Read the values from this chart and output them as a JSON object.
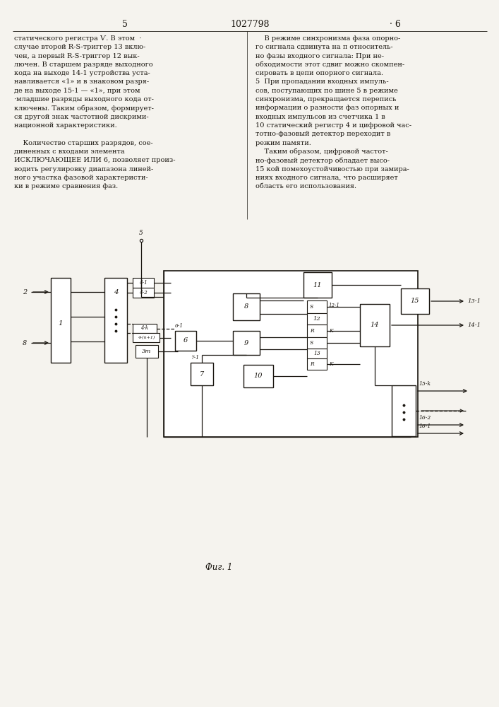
{
  "title": "1027798",
  "page_left": "5",
  "page_right": "6",
  "fig_caption": "Фиг. 1",
  "bg_color": "#f5f3ee",
  "text_color": "#1a1610",
  "lc_text": [
    "статического регистра Ѵ. В этом  ·",
    "случае второй R-S-триггер 13 вклю-",
    "чен, а первый R-S-триггер 12 вык-",
    "лючен. В старшем разряде выходного",
    "кода на выходе 14-1 устройства уста-",
    "навливается «1» и в знаковом разря-",
    "де на выходе 15-1 — «1», при этом",
    "·младшие разряды выходного кода от-",
    "ключены. Таким образом, формирует-",
    "ся другой знак частотной дискрими-",
    "национной характеристики.",
    "",
    "    Количество старших разрядов, сое-",
    "диненных с входами элемента",
    "ИСКЛЮЧАЮЩЕЕ ИЛИ 6, позволяет произ-",
    "водить регулировку диапазона линей-",
    "ного участка фазовой характеристи-",
    "ки в режиме сравнения фаз."
  ],
  "rc_text": [
    "    В режиме синхронизма фаза опорно-",
    "го сигнала сдвинута на π относитель-",
    "но фазы входного сигнала: При не-",
    "обходимости этот сдвиг можно скомпен-",
    "сировать в цепи опорного сигнала.",
    "5  При пропадании входных импуль-",
    "сов, поступающих по шине 5 в режиме",
    "синхронизма, прекращается перепись",
    "информации о разности фаз опорных и",
    "входных импульсов из счетчика 1 в",
    "10 статический регистр 4 и цифровой час-",
    "тотно-фазовый детектор переходит в",
    "режим памяти.",
    "    Таким образом, цифровой частот-",
    "но-фазовый детектор обладает высо-",
    "15 кой помехоустойчивостью при замира-",
    "ниях входного сигнала, что расширяет",
    "область его использования."
  ]
}
